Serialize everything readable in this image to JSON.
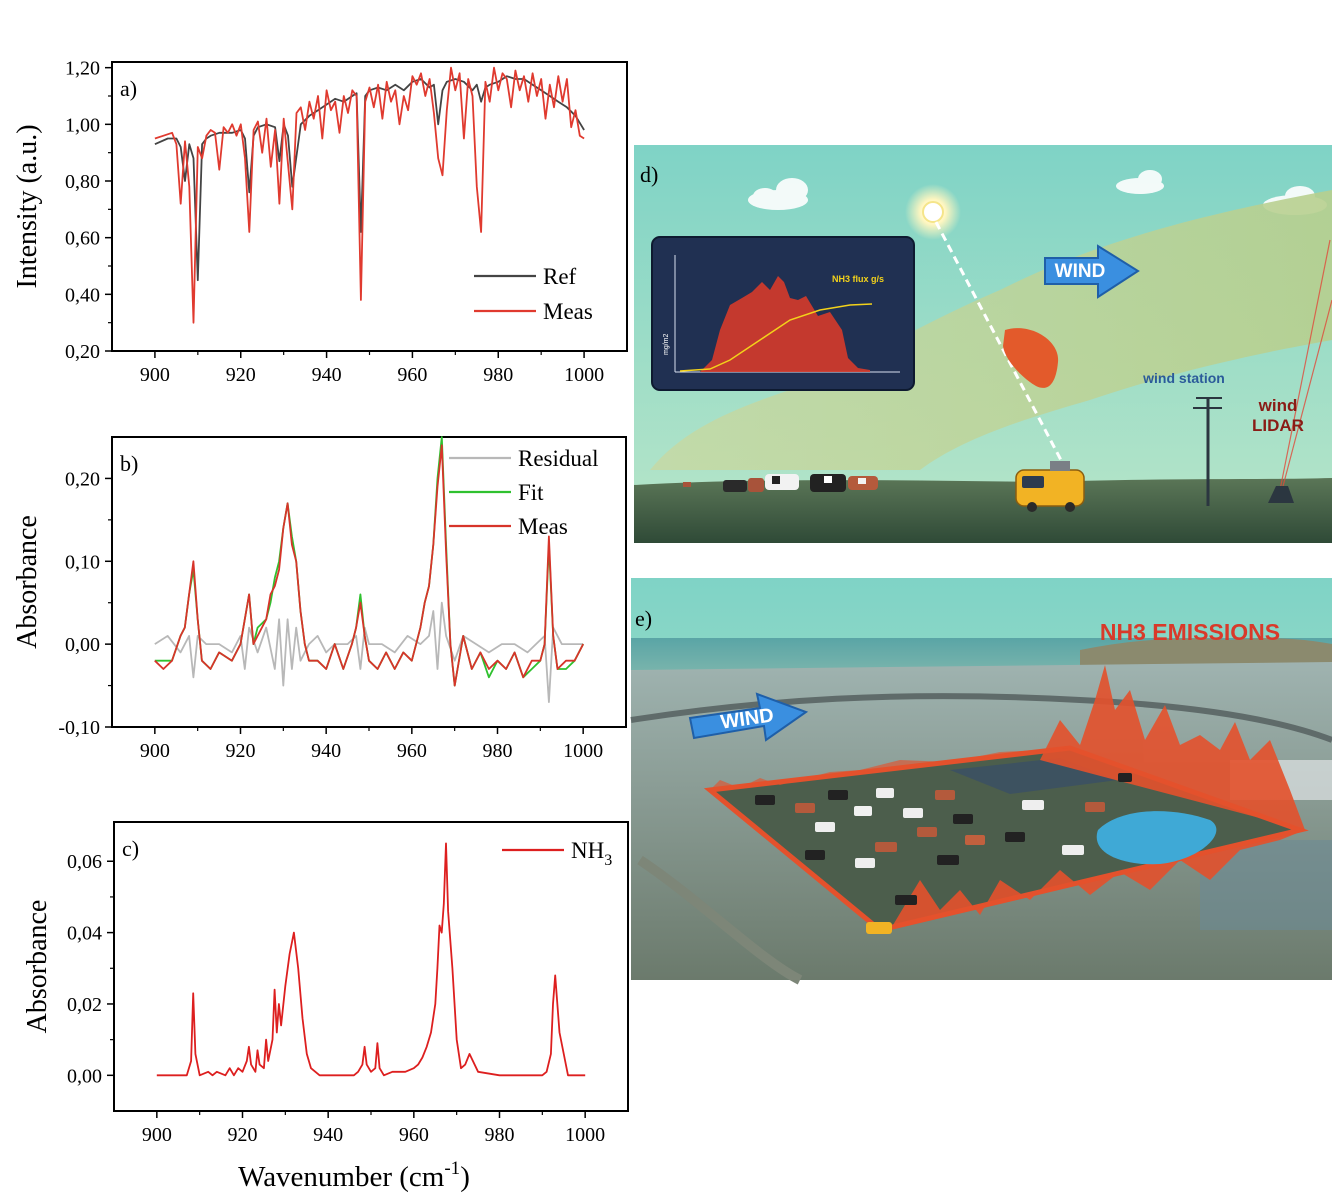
{
  "figure": {
    "xlabel_prefix": "Wavenumber (cm",
    "xlabel_sup": "-1",
    "xlabel_suffix": ")"
  },
  "chart_data": [
    {
      "panel": "a)",
      "type": "line",
      "ylabel": "Intensity (a.u.)",
      "xlim": [
        890,
        1010
      ],
      "ylim": [
        0.2,
        1.22
      ],
      "xticks": [
        900,
        920,
        940,
        960,
        980,
        1000
      ],
      "xtick_labels": [
        "900",
        "920",
        "940",
        "960",
        "980",
        "1000"
      ],
      "yticks": [
        0.2,
        0.4,
        0.6,
        0.8,
        1.0,
        1.2
      ],
      "ytick_labels": [
        "0,20",
        "0,40",
        "0,60",
        "0,80",
        "1,00",
        "1,20"
      ],
      "legend_position": "bottom-right",
      "series": [
        {
          "name": "Ref",
          "color": "#444444",
          "x": [
            900,
            903,
            905,
            906,
            907,
            908,
            909,
            910,
            911,
            912,
            913,
            915,
            918,
            920,
            921,
            922,
            923,
            924,
            926,
            928,
            929,
            930,
            931,
            932,
            934,
            936,
            938,
            940,
            942,
            944,
            946,
            947,
            948,
            949,
            950,
            952,
            954,
            956,
            958,
            960,
            962,
            964,
            965,
            966,
            967,
            968,
            970,
            972,
            974,
            975,
            976,
            977,
            978,
            980,
            982,
            984,
            986,
            988,
            990,
            992,
            994,
            996,
            998,
            1000
          ],
          "y": [
            0.93,
            0.95,
            0.95,
            0.92,
            0.8,
            0.93,
            0.88,
            0.45,
            0.93,
            0.95,
            0.96,
            0.97,
            0.97,
            0.98,
            0.95,
            0.76,
            0.96,
            0.99,
            1.0,
            0.99,
            0.87,
            1.0,
            0.96,
            0.78,
            1.0,
            1.03,
            1.05,
            1.07,
            1.09,
            1.08,
            1.1,
            1.11,
            0.62,
            1.1,
            1.12,
            1.13,
            1.12,
            1.14,
            1.12,
            1.15,
            1.16,
            1.13,
            1.14,
            1.0,
            1.12,
            1.15,
            1.16,
            1.15,
            1.12,
            1.14,
            1.08,
            1.13,
            1.14,
            1.15,
            1.17,
            1.16,
            1.16,
            1.14,
            1.12,
            1.1,
            1.08,
            1.06,
            1.03,
            0.98
          ]
        },
        {
          "name": "Meas",
          "color": "#e03a2f",
          "x": [
            900,
            902,
            904,
            905,
            906,
            907,
            908,
            909,
            910,
            911,
            912,
            913,
            914,
            915,
            916,
            917,
            918,
            919,
            920,
            921,
            922,
            923,
            924,
            925,
            926,
            927,
            928,
            929,
            930,
            931,
            932,
            933,
            934,
            935,
            936,
            937,
            938,
            939,
            940,
            941,
            942,
            943,
            944,
            945,
            946,
            947,
            948,
            949,
            950,
            951,
            952,
            953,
            954,
            955,
            956,
            957,
            958,
            959,
            960,
            961,
            962,
            963,
            964,
            965,
            966,
            967,
            968,
            969,
            970,
            971,
            972,
            973,
            974,
            975,
            976,
            977,
            978,
            979,
            980,
            981,
            982,
            983,
            984,
            985,
            986,
            987,
            988,
            989,
            990,
            991,
            992,
            993,
            994,
            995,
            996,
            997,
            998,
            999,
            1000
          ],
          "y": [
            0.95,
            0.96,
            0.97,
            0.93,
            0.72,
            0.94,
            0.78,
            0.3,
            0.92,
            0.88,
            0.96,
            0.98,
            0.97,
            0.84,
            0.99,
            0.97,
            1.0,
            0.96,
            1.0,
            0.88,
            0.62,
            0.98,
            1.01,
            0.9,
            1.02,
            0.85,
            0.98,
            0.72,
            1.02,
            0.86,
            0.7,
            1.04,
            1.06,
            0.98,
            1.08,
            1.02,
            1.1,
            0.95,
            1.12,
            1.05,
            1.08,
            0.97,
            1.1,
            1.04,
            1.12,
            1.1,
            0.38,
            1.08,
            1.13,
            1.06,
            1.14,
            1.02,
            1.15,
            1.08,
            1.12,
            1.0,
            1.1,
            1.05,
            1.17,
            1.14,
            1.18,
            1.1,
            1.16,
            1.04,
            0.88,
            0.82,
            1.05,
            1.2,
            1.12,
            1.18,
            0.95,
            1.16,
            1.1,
            0.78,
            0.62,
            1.15,
            1.08,
            1.2,
            1.12,
            1.18,
            1.16,
            1.06,
            1.19,
            1.12,
            1.17,
            1.08,
            1.18,
            1.1,
            1.16,
            1.02,
            1.14,
            1.06,
            1.17,
            1.08,
            1.16,
            0.99,
            1.05,
            0.96,
            0.95
          ]
        }
      ]
    },
    {
      "panel": "b)",
      "type": "line",
      "ylabel": "Absorbance",
      "xlim": [
        890,
        1010
      ],
      "ylim": [
        -0.1,
        0.25
      ],
      "xticks": [
        900,
        920,
        940,
        960,
        980,
        1000
      ],
      "xtick_labels": [
        "900",
        "920",
        "940",
        "960",
        "980",
        "1000"
      ],
      "yticks": [
        -0.1,
        0.0,
        0.1,
        0.2
      ],
      "ytick_labels": [
        "-0,10",
        "0,00",
        "0,10",
        "0,20"
      ],
      "legend_position": "top-right",
      "series": [
        {
          "name": "Residual",
          "color": "#b8b8b8",
          "x": [
            900,
            903,
            906,
            908,
            909,
            910,
            912,
            915,
            918,
            920,
            921,
            922,
            924,
            926,
            928,
            929,
            930,
            931,
            932,
            933,
            934,
            936,
            938,
            940,
            942,
            945,
            947,
            948,
            949,
            950,
            953,
            956,
            959,
            962,
            964,
            965,
            966,
            967,
            968,
            970,
            972,
            975,
            978,
            981,
            984,
            987,
            989,
            991,
            992,
            993,
            995,
            997,
            1000
          ],
          "y": [
            0.0,
            0.01,
            -0.01,
            0.01,
            -0.04,
            0.01,
            0.0,
            0.0,
            -0.01,
            0.01,
            -0.03,
            0.02,
            -0.01,
            0.02,
            -0.03,
            0.03,
            -0.05,
            0.03,
            -0.03,
            0.02,
            -0.02,
            0.0,
            0.01,
            -0.01,
            0.0,
            0.0,
            0.01,
            -0.03,
            0.02,
            0.0,
            0.0,
            -0.01,
            0.01,
            0.0,
            0.01,
            0.04,
            -0.03,
            0.05,
            0.01,
            -0.02,
            0.01,
            0.0,
            -0.01,
            0.0,
            0.0,
            -0.01,
            0.0,
            0.01,
            -0.07,
            0.02,
            0.0,
            0.0,
            0.0
          ]
        },
        {
          "name": "Fit",
          "color": "#2fc12f",
          "x": [
            900,
            902,
            904,
            906,
            907,
            908,
            909,
            910,
            911,
            913,
            915,
            918,
            920,
            921,
            922,
            923,
            924,
            926,
            927,
            928,
            929,
            930,
            931,
            932,
            933,
            934,
            935,
            936,
            938,
            940,
            942,
            944,
            946,
            947,
            948,
            949,
            950,
            952,
            954,
            956,
            958,
            960,
            962,
            963,
            964,
            965,
            966,
            967,
            968,
            969,
            970,
            972,
            974,
            976,
            978,
            980,
            982,
            984,
            986,
            988,
            990,
            991,
            992,
            993,
            994,
            996,
            998,
            1000
          ],
          "y": [
            -0.02,
            -0.02,
            -0.02,
            0.01,
            0.02,
            0.06,
            0.09,
            0.03,
            -0.02,
            -0.03,
            -0.01,
            -0.02,
            0.0,
            0.03,
            0.06,
            0.0,
            0.02,
            0.03,
            0.05,
            0.08,
            0.1,
            0.14,
            0.17,
            0.13,
            0.1,
            0.04,
            0.0,
            -0.02,
            -0.02,
            -0.03,
            0.0,
            -0.03,
            0.0,
            0.02,
            0.06,
            0.01,
            -0.02,
            -0.03,
            -0.01,
            -0.03,
            -0.01,
            -0.02,
            0.02,
            0.05,
            0.07,
            0.12,
            0.2,
            0.25,
            0.12,
            0.0,
            -0.05,
            0.01,
            -0.03,
            -0.01,
            -0.04,
            -0.02,
            -0.03,
            -0.01,
            -0.04,
            -0.03,
            -0.02,
            0.0,
            0.12,
            0.01,
            -0.03,
            -0.03,
            -0.02,
            0.0
          ]
        },
        {
          "name": "Meas",
          "color": "#d7342a",
          "x": [
            900,
            902,
            904,
            906,
            907,
            908,
            909,
            910,
            911,
            913,
            915,
            918,
            920,
            921,
            922,
            923,
            924,
            926,
            927,
            928,
            929,
            930,
            931,
            932,
            933,
            934,
            935,
            936,
            938,
            940,
            942,
            944,
            946,
            947,
            948,
            949,
            950,
            952,
            954,
            956,
            958,
            960,
            962,
            963,
            964,
            965,
            966,
            967,
            968,
            969,
            970,
            972,
            974,
            976,
            978,
            980,
            982,
            984,
            986,
            988,
            990,
            991,
            992,
            993,
            994,
            996,
            998,
            1000
          ],
          "y": [
            -0.02,
            -0.03,
            -0.02,
            0.01,
            0.02,
            0.06,
            0.1,
            0.03,
            -0.02,
            -0.03,
            -0.01,
            -0.02,
            0.0,
            0.03,
            0.06,
            0.0,
            0.01,
            0.03,
            0.06,
            0.07,
            0.09,
            0.14,
            0.17,
            0.12,
            0.1,
            0.04,
            0.0,
            -0.02,
            -0.02,
            -0.03,
            0.0,
            -0.03,
            0.0,
            0.02,
            0.05,
            0.01,
            -0.02,
            -0.03,
            -0.01,
            -0.03,
            -0.01,
            -0.02,
            0.02,
            0.05,
            0.07,
            0.12,
            0.19,
            0.24,
            0.11,
            0.0,
            -0.05,
            0.01,
            -0.03,
            -0.01,
            -0.03,
            -0.02,
            -0.03,
            -0.01,
            -0.04,
            -0.02,
            -0.02,
            0.0,
            0.13,
            0.01,
            -0.03,
            -0.02,
            -0.02,
            0.0
          ]
        }
      ]
    },
    {
      "panel": "c)",
      "type": "line",
      "ylabel": "Absorbance",
      "xlim": [
        890,
        1010
      ],
      "ylim": [
        -0.01,
        0.071
      ],
      "xticks": [
        900,
        920,
        940,
        960,
        980,
        1000
      ],
      "xtick_labels": [
        "900",
        "920",
        "940",
        "960",
        "980",
        "1000"
      ],
      "yticks": [
        0.0,
        0.02,
        0.04,
        0.06
      ],
      "ytick_labels": [
        "0,00",
        "0,02",
        "0,04",
        "0,06"
      ],
      "legend_position": "top-right",
      "series": [
        {
          "name": "NH",
          "name_sub": "3",
          "color": "#dd1f1f",
          "x": [
            900,
            907,
            908,
            908.5,
            909,
            910,
            912,
            913,
            914,
            916,
            917,
            918,
            919,
            920,
            921,
            921.5,
            922,
            923,
            923.5,
            924,
            925,
            925.5,
            926,
            927,
            927.5,
            928,
            928.5,
            929,
            930,
            931,
            932,
            933,
            934,
            935,
            936,
            938,
            940,
            946,
            947,
            948,
            948.5,
            949,
            950,
            951,
            951.5,
            952,
            953,
            955,
            958,
            960,
            961,
            962,
            963,
            964,
            965,
            965.5,
            966,
            966.5,
            967,
            967.5,
            968,
            969,
            970,
            971,
            972,
            973,
            975,
            980,
            988,
            990,
            991,
            992,
            992.5,
            993,
            994,
            996,
            1000
          ],
          "y": [
            0.0,
            0.0,
            0.004,
            0.023,
            0.006,
            0.0,
            0.001,
            0.0,
            0.001,
            0.0,
            0.002,
            0.0,
            0.002,
            0.001,
            0.004,
            0.008,
            0.003,
            0.001,
            0.007,
            0.003,
            0.002,
            0.01,
            0.004,
            0.01,
            0.024,
            0.012,
            0.02,
            0.014,
            0.025,
            0.034,
            0.04,
            0.03,
            0.016,
            0.006,
            0.002,
            0.0,
            0.0,
            0.0,
            0.001,
            0.003,
            0.008,
            0.003,
            0.001,
            0.002,
            0.009,
            0.002,
            0.0,
            0.001,
            0.001,
            0.002,
            0.003,
            0.005,
            0.008,
            0.012,
            0.02,
            0.03,
            0.042,
            0.04,
            0.048,
            0.065,
            0.046,
            0.03,
            0.01,
            0.002,
            0.003,
            0.006,
            0.001,
            0.0,
            0.0,
            0.0,
            0.001,
            0.006,
            0.02,
            0.028,
            0.012,
            0.0,
            0.0
          ]
        }
      ]
    }
  ],
  "inset": {
    "panel": "d)",
    "wind": "WIND",
    "plot_label": "NH3 flux g/s",
    "plot_ylabel": "mg/m2",
    "station_label": "wind station",
    "lidar_line1": "wind",
    "lidar_line2": "LIDAR"
  },
  "scene": {
    "panel": "e)",
    "title": "NH3 EMISSIONS",
    "wind": "WIND"
  },
  "colors": {
    "sky": "#8fd6c8",
    "ground": "#4e6a4a",
    "emission_red": "#e4512c",
    "wind_blue": "#3a8fe0",
    "van": "#f2b324"
  }
}
